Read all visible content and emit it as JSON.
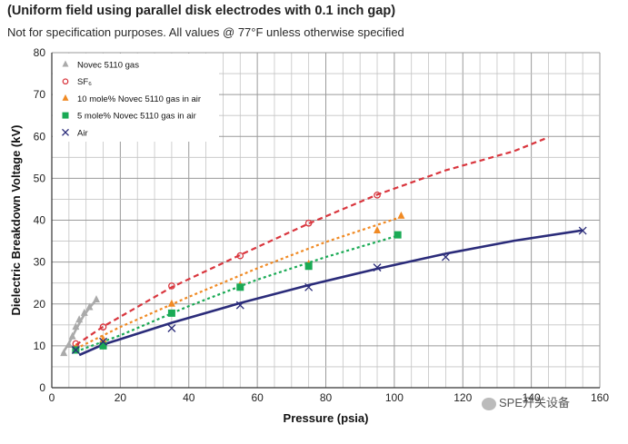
{
  "header": {
    "title": "(Uniform field using parallel disk electrodes with 0.1 inch gap)",
    "subtitle": "Not for specification purposes. All values @ 77°F unless otherwise specified"
  },
  "watermark": {
    "text": "SPE开关设备",
    "icon": "wechat-icon"
  },
  "chart_data": {
    "type": "scatter",
    "title": "(Uniform field using parallel disk electrodes with 0.1 inch gap)",
    "xlabel": "Pressure (psia)",
    "ylabel": "Dielectric Breakdown Voltage (kV)",
    "xlim": [
      0,
      160
    ],
    "ylim": [
      0,
      80
    ],
    "x_ticks": [
      "0",
      "20",
      "40",
      "60",
      "80",
      "100",
      "120",
      "140",
      "160"
    ],
    "y_ticks": [
      "0",
      "10",
      "20",
      "30",
      "40",
      "50",
      "60",
      "70",
      "80"
    ],
    "grid": true,
    "minor_grid_x": 4,
    "minor_grid_y": 2,
    "legend_position": "top-left",
    "series": [
      {
        "name": "Novec 5110 gas",
        "marker": "triangle-filled",
        "color": "#aaaaaa",
        "points": [
          [
            3.5,
            8.2
          ],
          [
            5,
            10.2
          ],
          [
            6,
            12.2
          ],
          [
            7,
            14.5
          ],
          [
            8,
            16.2
          ],
          [
            9.5,
            17.8
          ],
          [
            11,
            19.2
          ],
          [
            13,
            21.0
          ]
        ],
        "fit": {
          "style": "solid",
          "points": [
            [
              3,
              8.0
            ],
            [
              5,
              10.6
            ],
            [
              7,
              13.8
            ],
            [
              9,
              16.8
            ],
            [
              11,
              19.1
            ],
            [
              13,
              21.0
            ]
          ]
        }
      },
      {
        "name": "SF₆",
        "marker": "circle-open",
        "color": "#d9363e",
        "points": [
          [
            7,
            10.5
          ],
          [
            15,
            14.5
          ],
          [
            35,
            24.3
          ],
          [
            55,
            31.5
          ],
          [
            75,
            39.3
          ],
          [
            95,
            46.0
          ]
        ],
        "fit": {
          "style": "dashed",
          "points": [
            [
              7,
              10.2
            ],
            [
              15,
              14.6
            ],
            [
              35,
              24.0
            ],
            [
              55,
              31.7
            ],
            [
              75,
              39.2
            ],
            [
              95,
              46.1
            ],
            [
              115,
              51.9
            ],
            [
              135,
              56.5
            ],
            [
              145,
              59.8
            ]
          ]
        }
      },
      {
        "name": "10 mole% Novec 5110 gas in air",
        "marker": "triangle-filled",
        "color": "#f08a24",
        "points": [
          [
            7,
            9.5
          ],
          [
            15,
            11.5
          ],
          [
            35,
            20.0
          ],
          [
            55,
            24.5
          ],
          [
            75,
            29.5
          ],
          [
            95,
            37.5
          ],
          [
            102,
            41.0
          ]
        ],
        "fit": {
          "style": "dotted",
          "points": [
            [
              7,
              9.3
            ],
            [
              20,
              14.5
            ],
            [
              40,
              21.7
            ],
            [
              60,
              28.5
            ],
            [
              80,
              34.8
            ],
            [
              101,
              40.5
            ]
          ]
        }
      },
      {
        "name": "5 mole% Novec 5110 gas in air",
        "marker": "square-filled",
        "color": "#1aaa55",
        "points": [
          [
            7,
            9.0
          ],
          [
            15,
            10.0
          ],
          [
            35,
            17.8
          ],
          [
            55,
            24.0
          ],
          [
            75,
            29.0
          ],
          [
            101,
            36.5
          ]
        ],
        "fit": {
          "style": "dotted",
          "points": [
            [
              7,
              8.6
            ],
            [
              20,
              12.5
            ],
            [
              40,
              19.5
            ],
            [
              60,
              25.8
            ],
            [
              80,
              31.2
            ],
            [
              101,
              36.3
            ]
          ]
        }
      },
      {
        "name": "Air",
        "marker": "x",
        "color": "#2b2c7a",
        "points": [
          [
            7,
            9.0
          ],
          [
            15,
            11.0
          ],
          [
            35,
            14.2
          ],
          [
            55,
            19.7
          ],
          [
            75,
            24.0
          ],
          [
            95,
            28.7
          ],
          [
            115,
            31.2
          ],
          [
            155,
            37.5
          ]
        ],
        "fit": {
          "style": "solid",
          "points": [
            [
              8,
              7.8
            ],
            [
              15,
              10.3
            ],
            [
              35,
              15.5
            ],
            [
              55,
              20.2
            ],
            [
              75,
              24.5
            ],
            [
              95,
              28.4
            ],
            [
              115,
              32.0
            ],
            [
              135,
              35.1
            ],
            [
              155,
              37.6
            ]
          ]
        }
      }
    ]
  }
}
